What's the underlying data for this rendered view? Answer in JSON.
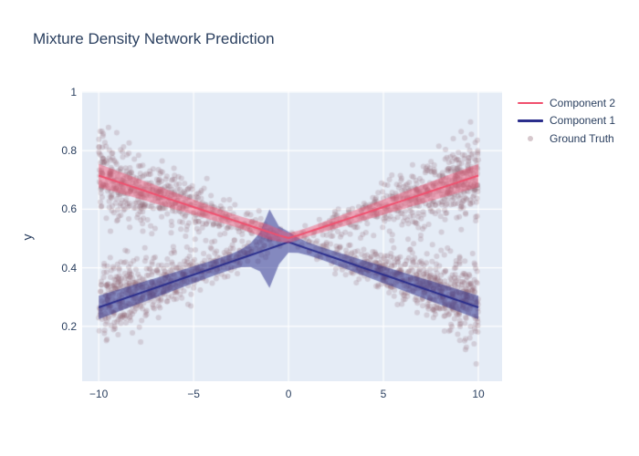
{
  "title": "Mixture Density Network Prediction",
  "colors": {
    "background": "#ffffff",
    "plot_bg": "#E5ECF6",
    "grid": "#ffffff",
    "text": "#2a3f5f",
    "component1_line": "#2B2E8C",
    "component1_band": "rgba(43,46,140,0.52)",
    "component2_line": "#F0506E",
    "component2_band": "rgba(240,80,110,0.45)",
    "ground_truth_marker": "rgba(141,96,111,0.22)"
  },
  "chart_data": {
    "type": "scatter",
    "title": "Mixture Density Network Prediction",
    "xlabel": "",
    "ylabel": "y",
    "x_range": [
      -10.87,
      11.25
    ],
    "y_range": [
      0.013,
      1.003
    ],
    "grid": true,
    "legend_position": "right-top-outside",
    "x_ticks": {
      "values": [
        -10,
        -5,
        0,
        5,
        10
      ],
      "labels": [
        "−10",
        "−5",
        "0",
        "5",
        "10"
      ]
    },
    "y_ticks": {
      "values": [
        0.2,
        0.4,
        0.6,
        0.8,
        1
      ],
      "labels": [
        "0.2",
        "0.4",
        "0.6",
        "0.8",
        "1"
      ]
    },
    "legend": [
      {
        "label": "Component 2",
        "swatch": "line",
        "color": "#F0506E"
      },
      {
        "label": "Component 1",
        "swatch": "line",
        "color": "#2B2E8C"
      },
      {
        "label": "Ground Truth",
        "swatch": "dot",
        "color": "rgba(141,96,111,0.35)"
      }
    ],
    "series": [
      {
        "name": "Ground Truth",
        "type": "scatter",
        "color": "rgba(141,96,111,0.22)",
        "marker_radius_px": 3,
        "n_points": 2200,
        "seed": 123456,
        "x_power": 0.5,
        "x_abs_max": 10,
        "upper_branch_slope": 0.0215,
        "lower_branch_slope": 0.0223,
        "branch_center": 0.5,
        "noise": {
          "base": 0.012,
          "slope": 0.0058
        },
        "description": "two crossing noisy branches: y = 0.5 ± slope·|x| + N(0, (0.012+0.0058|x|)²), denser toward x = ±10"
      },
      {
        "name": "Component 1",
        "type": "line+band",
        "color": "#2B2E8C",
        "band_color": "rgba(43,46,140,0.52)",
        "x": [
          -10,
          -9.5,
          -9,
          -8.5,
          -8,
          -7.5,
          -7,
          -6.5,
          -6,
          -5.5,
          -5,
          -4.5,
          -4,
          -3.5,
          -3,
          -2.5,
          -2,
          -1.5,
          -1,
          -0.5,
          0,
          0.5,
          1,
          1.5,
          2,
          2.5,
          3,
          3.5,
          4,
          4.5,
          5,
          5.5,
          6,
          6.5,
          7,
          7.5,
          8,
          8.5,
          9,
          9.5,
          10
        ],
        "mean": [
          0.265,
          0.2762,
          0.2873,
          0.2985,
          0.3096,
          0.3208,
          0.3319,
          0.3431,
          0.3542,
          0.3654,
          0.3765,
          0.3877,
          0.3988,
          0.41,
          0.4211,
          0.4323,
          0.4434,
          0.4546,
          0.4657,
          0.4769,
          0.488,
          0.4769,
          0.4657,
          0.4546,
          0.4434,
          0.4323,
          0.4211,
          0.41,
          0.3988,
          0.3877,
          0.3765,
          0.3654,
          0.3542,
          0.3431,
          0.3319,
          0.3208,
          0.3096,
          0.2985,
          0.2873,
          0.2762,
          0.265
        ],
        "half_width": [
          0.04,
          0.0389,
          0.0377,
          0.0366,
          0.0354,
          0.0343,
          0.0331,
          0.032,
          0.0308,
          0.0297,
          0.0285,
          0.0274,
          0.0267,
          0.0263,
          0.0269,
          0.0303,
          0.0403,
          0.0668,
          0.1343,
          0.0645,
          0.0357,
          0.0257,
          0.0223,
          0.0217,
          0.0221,
          0.023,
          0.0239,
          0.0251,
          0.0262,
          0.0274,
          0.0285,
          0.0297,
          0.0308,
          0.032,
          0.0331,
          0.0343,
          0.0354,
          0.0366,
          0.0377,
          0.0389,
          0.04
        ]
      },
      {
        "name": "Component 2",
        "type": "line+band",
        "color": "#F0506E",
        "band_color": "rgba(240,80,110,0.45)",
        "x": [
          -10,
          -9.5,
          -9,
          -8.5,
          -8,
          -7.5,
          -7,
          -6.5,
          -6,
          -5.5,
          -5,
          -4.5,
          -4,
          -3.5,
          -3,
          -2.5,
          -2,
          -1.5,
          -1,
          -0.5,
          0,
          0.5,
          1,
          1.5,
          2,
          2.5,
          3,
          3.5,
          4,
          4.5,
          5,
          5.5,
          6,
          6.5,
          7,
          7.5,
          8,
          8.5,
          9,
          9.5,
          10
        ],
        "mean": [
          0.715,
          0.7043,
          0.6935,
          0.6828,
          0.672,
          0.6613,
          0.6505,
          0.6398,
          0.629,
          0.6183,
          0.6075,
          0.5968,
          0.586,
          0.5753,
          0.5645,
          0.5538,
          0.543,
          0.5323,
          0.5215,
          0.5108,
          0.502,
          0.5108,
          0.5215,
          0.5323,
          0.543,
          0.5538,
          0.5645,
          0.5753,
          0.586,
          0.5968,
          0.6075,
          0.6183,
          0.629,
          0.6398,
          0.6505,
          0.6613,
          0.672,
          0.6828,
          0.6935,
          0.7043,
          0.715
        ],
        "half_width": [
          0.04,
          0.0386,
          0.0372,
          0.0358,
          0.0344,
          0.033,
          0.0316,
          0.0302,
          0.0288,
          0.0274,
          0.026,
          0.0246,
          0.0232,
          0.0219,
          0.021,
          0.0211,
          0.0226,
          0.0246,
          0.0248,
          0.0218,
          0.017,
          0.0155,
          0.0154,
          0.0162,
          0.0176,
          0.019,
          0.0204,
          0.0218,
          0.0232,
          0.0246,
          0.026,
          0.0274,
          0.0288,
          0.0302,
          0.0316,
          0.033,
          0.0344,
          0.0358,
          0.0372,
          0.0386,
          0.04
        ]
      }
    ]
  }
}
